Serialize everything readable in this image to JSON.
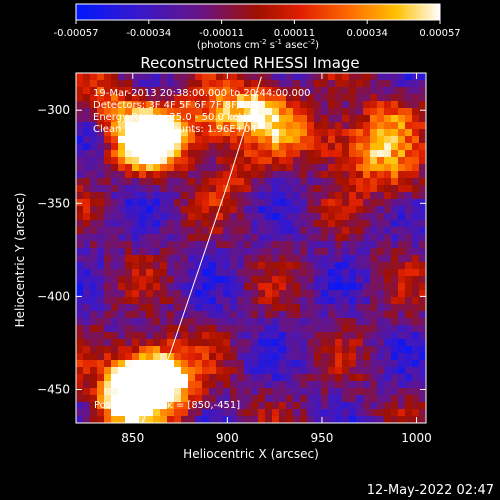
{
  "chart_data": {
    "type": "heatmap",
    "title": "Reconstructed RHESSI Image",
    "xlabel": "Heliocentric X (arcsec)",
    "ylabel": "Heliocentric Y (arcsec)",
    "xlim": [
      820,
      1005
    ],
    "ylim": [
      -468,
      -280
    ],
    "x_ticks": [
      850,
      900,
      950,
      1000
    ],
    "y_ticks": [
      -300,
      -350,
      -400,
      -450
    ],
    "colorbar": {
      "range": [
        -0.00057,
        0.00057
      ],
      "ticks": [
        "-0.00057",
        "-0.00034",
        "-0.00011",
        "0.00011",
        "0.00034",
        "0.00057"
      ],
      "unit_label": "(photons cm",
      "unit_exp1": "-2",
      "unit_mid": " s",
      "unit_exp2": "-1",
      "unit_mid2": " asec",
      "unit_exp3": "-2",
      "unit_end": ")",
      "colormap": "blue-purple-red-orange-yellow-white"
    },
    "annotations": [
      "19-Mar-2013 20:38:00.000 to 20:44:00.000",
      "Detectors: 3F 4F 5F 6F 7F 8F/Att 0",
      "Energy Range: 25.0 - 50.0 keV",
      "Clean      Total counts: 1.96E+04"
    ],
    "peak_label": "Position of Peak = [850,-451]",
    "peak": [
      850,
      -451
    ],
    "sources": [
      {
        "x": 856,
        "y": -318,
        "strength": 1.0
      },
      {
        "x": 870,
        "y": -312,
        "strength": 0.7
      },
      {
        "x": 895,
        "y": -305,
        "strength": 0.65
      },
      {
        "x": 915,
        "y": -297,
        "strength": 0.6
      },
      {
        "x": 838,
        "y": -295,
        "strength": 0.45
      },
      {
        "x": 850,
        "y": -447,
        "strength": 1.0
      },
      {
        "x": 862,
        "y": -438,
        "strength": 0.8
      },
      {
        "x": 872,
        "y": -452,
        "strength": 0.6
      },
      {
        "x": 842,
        "y": -462,
        "strength": 0.5
      },
      {
        "x": 955,
        "y": -315,
        "strength": 0.45
      },
      {
        "x": 975,
        "y": -322,
        "strength": 0.5
      },
      {
        "x": 990,
        "y": -338,
        "strength": 0.4
      },
      {
        "x": 985,
        "y": -305,
        "strength": 0.35
      },
      {
        "x": 930,
        "y": -310,
        "strength": 0.35
      },
      {
        "x": 905,
        "y": -335,
        "strength": 0.3
      }
    ],
    "limb_curve": {
      "x": [
        855,
        870,
        885,
        900,
        918
      ],
      "y": [
        -468,
        -430,
        -385,
        -340,
        -282
      ]
    }
  },
  "footer": {
    "date": "12-May-2022 02:47"
  },
  "colors": {
    "background": "#000000",
    "foreground": "#ffffff"
  }
}
